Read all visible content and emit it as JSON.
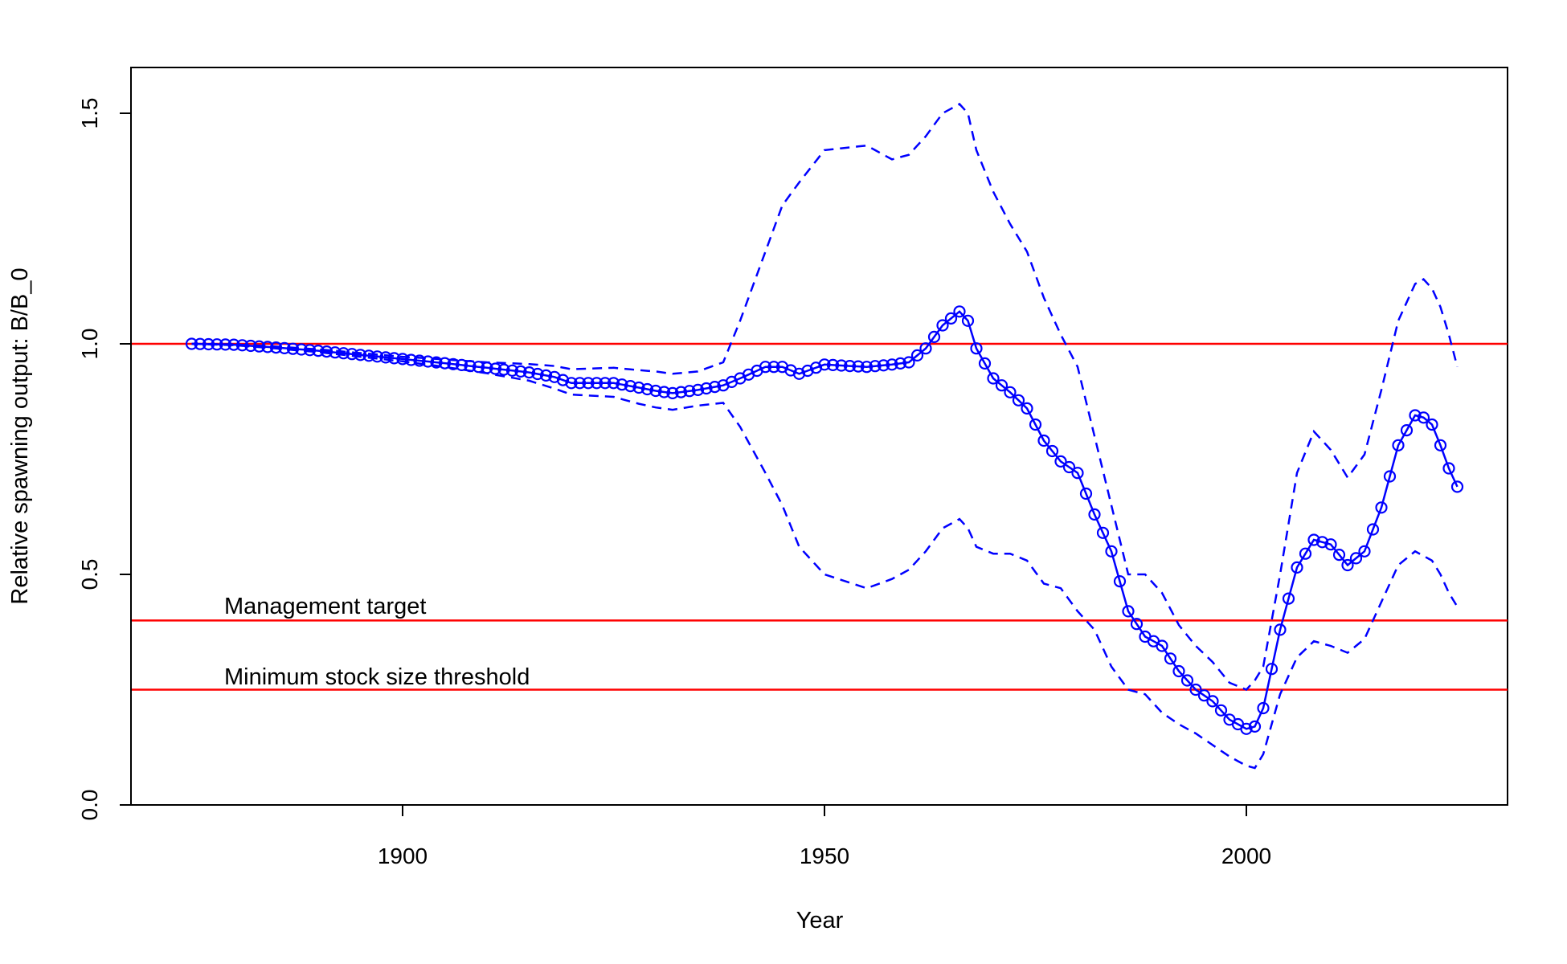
{
  "chart_data": {
    "type": "line",
    "title": "",
    "xlabel": "Year",
    "ylabel": "Relative spawning output: B/B_0",
    "xlim": [
      1867,
      2032
    ],
    "ylim": [
      0,
      1.6
    ],
    "x_ticks": [
      1900,
      1950,
      2000
    ],
    "y_ticks": [
      0,
      0.5,
      1,
      1.5
    ],
    "y_tick_labels": [
      "0.0",
      "0.5",
      "1.0",
      "1.5"
    ],
    "grid": false,
    "legend": "none",
    "colors": {
      "series": "#0000ff",
      "reference": "#ff0000"
    },
    "reference_lines": [
      {
        "y": 1.0,
        "label": ""
      },
      {
        "y": 0.4,
        "label": "Management target"
      },
      {
        "y": 0.25,
        "label": "Minimum stock size threshold"
      }
    ],
    "anchors": {
      "x": [
        1875,
        1880,
        1885,
        1890,
        1895,
        1900,
        1905,
        1910,
        1915,
        1918,
        1920,
        1925,
        1928,
        1930,
        1932,
        1935,
        1938,
        1940,
        1943,
        1945,
        1947,
        1950,
        1955,
        1958,
        1960,
        1962,
        1964,
        1966,
        1967,
        1968,
        1970,
        1972,
        1974,
        1976,
        1978,
        1980,
        1982,
        1984,
        1986,
        1988,
        1990,
        1992,
        1994,
        1996,
        1998,
        2000,
        2001,
        2002,
        2004,
        2006,
        2008,
        2010,
        2012,
        2014,
        2016,
        2018,
        2020,
        2021,
        2022,
        2023,
        2024,
        2025
      ],
      "estimate": [
        1.0,
        0.998,
        0.992,
        0.985,
        0.976,
        0.967,
        0.958,
        0.948,
        0.938,
        0.928,
        0.915,
        0.915,
        0.905,
        0.898,
        0.893,
        0.9,
        0.91,
        0.925,
        0.95,
        0.95,
        0.935,
        0.955,
        0.95,
        0.955,
        0.96,
        0.99,
        1.04,
        1.07,
        1.05,
        0.99,
        0.925,
        0.895,
        0.86,
        0.79,
        0.745,
        0.72,
        0.63,
        0.55,
        0.42,
        0.365,
        0.345,
        0.29,
        0.25,
        0.225,
        0.185,
        0.165,
        0.17,
        0.21,
        0.38,
        0.515,
        0.575,
        0.565,
        0.52,
        0.55,
        0.645,
        0.78,
        0.845,
        0.84,
        0.825,
        0.78,
        0.73,
        0.69
      ],
      "upper": [
        1.0,
        0.999,
        0.994,
        0.988,
        0.98,
        0.972,
        0.966,
        0.96,
        0.956,
        0.952,
        0.945,
        0.948,
        0.943,
        0.94,
        0.935,
        0.94,
        0.96,
        1.05,
        1.2,
        1.3,
        1.35,
        1.42,
        1.43,
        1.4,
        1.41,
        1.45,
        1.5,
        1.52,
        1.5,
        1.42,
        1.33,
        1.26,
        1.2,
        1.1,
        1.02,
        0.95,
        0.8,
        0.65,
        0.5,
        0.5,
        0.46,
        0.39,
        0.345,
        0.31,
        0.265,
        0.25,
        0.27,
        0.3,
        0.5,
        0.72,
        0.81,
        0.77,
        0.71,
        0.76,
        0.9,
        1.05,
        1.13,
        1.14,
        1.12,
        1.08,
        1.02,
        0.95
      ],
      "lower": [
        1.0,
        0.997,
        0.99,
        0.982,
        0.972,
        0.962,
        0.95,
        0.936,
        0.92,
        0.903,
        0.89,
        0.885,
        0.87,
        0.862,
        0.857,
        0.866,
        0.872,
        0.82,
        0.72,
        0.65,
        0.56,
        0.5,
        0.47,
        0.49,
        0.51,
        0.55,
        0.6,
        0.62,
        0.6,
        0.56,
        0.545,
        0.545,
        0.53,
        0.48,
        0.47,
        0.42,
        0.38,
        0.3,
        0.25,
        0.24,
        0.2,
        0.175,
        0.155,
        0.13,
        0.105,
        0.085,
        0.08,
        0.11,
        0.24,
        0.32,
        0.355,
        0.345,
        0.33,
        0.36,
        0.44,
        0.52,
        0.55,
        0.54,
        0.53,
        0.5,
        0.46,
        0.43
      ]
    }
  }
}
